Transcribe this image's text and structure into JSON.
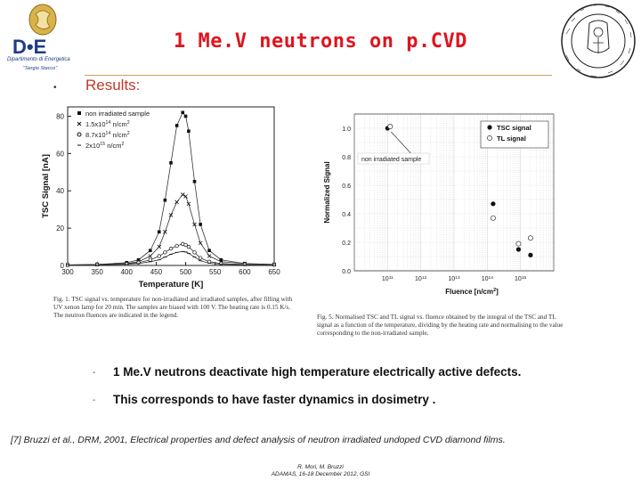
{
  "slide": {
    "title": "1 Me.V neutrons on p.CVD",
    "subtitle": "Results:",
    "bullets": [
      "1 Me.V neutrons deactivate high temperature electrically active defects.",
      "This corresponds to have faster dynamics in dosimetry ."
    ],
    "reference": "[7] Bruzzi et al., DRM, 2001, Electrical properties and defect analysis of neutron irradiated undoped CVD diamond films.",
    "authors": "R. Mori, M. Bruzzi",
    "event": "ADAMAS, 16-18 December 2012, GSI"
  },
  "logos": {
    "left_text": "D•E",
    "left_caption": "Dipartimento di Energetica",
    "left_sub": "\"Sergio Stecco\""
  },
  "figure1": {
    "caption": "Fig. 1. TSC signal vs. temperature for non-irradiated and irradiated samples, after filling with UV xenon lamp for 20 min. The samples are biased with 100 V. The heating rate is 0.15 K/s. The neutron fluences are indicated in the legend."
  },
  "figure2": {
    "caption": "Fig. 5. Normalised TSC and TL signal vs. fluence obtained by the integral of the TSC and TL signal as a function of the temperature, dividing by the heating rate and normalising to the value corresponding to the non-irradiated sample."
  },
  "chart_data": [
    {
      "type": "line",
      "xlabel": "Temperature [K]",
      "ylabel": "TSC Signal [nA]",
      "xlim": [
        300,
        650
      ],
      "ylim": [
        0,
        85
      ],
      "xticks": [
        300,
        350,
        400,
        450,
        500,
        550,
        600,
        650
      ],
      "yticks": [
        0,
        20,
        40,
        60,
        80
      ],
      "x": [
        300,
        350,
        400,
        420,
        440,
        455,
        465,
        475,
        485,
        495,
        500,
        505,
        515,
        525,
        540,
        560,
        600,
        650
      ],
      "series": [
        {
          "name": "non irradiated sample",
          "marker": "square",
          "values": [
            0.3,
            0.5,
            1.5,
            3,
            8,
            18,
            35,
            55,
            75,
            82,
            80,
            72,
            45,
            22,
            8,
            3,
            1,
            0.5
          ]
        },
        {
          "name": "1.5x10^14 n/cm^2",
          "marker": "x",
          "values": [
            0.3,
            0.5,
            1,
            2,
            5,
            10,
            18,
            27,
            34,
            38,
            37,
            33,
            22,
            12,
            5,
            2,
            1,
            0.5
          ]
        },
        {
          "name": "8.7x10^14 n/cm^2",
          "marker": "circle",
          "values": [
            0.2,
            0.4,
            0.8,
            1.5,
            3,
            5,
            7,
            9,
            10.5,
            11.5,
            11,
            10,
            7,
            4,
            2,
            1,
            0.5,
            0.3
          ]
        },
        {
          "name": "2x10^15 n/cm^2",
          "marker": "dash",
          "values": [
            0.2,
            0.3,
            0.6,
            1,
            2,
            3,
            4.5,
            6,
            7,
            7.5,
            7.2,
            6.5,
            4.5,
            2.5,
            1.2,
            0.6,
            0.3,
            0.2
          ]
        }
      ],
      "legend": "top-left",
      "legend_entries": [
        "non irradiated sample",
        "1.5x10^14 n/cm^2",
        "8.7x10^14 n/cm^2",
        "2x10^15 n/cm^2"
      ]
    },
    {
      "type": "scatter",
      "xlabel": "Fluence [n/cm^2]",
      "ylabel": "Normalized Signal",
      "log_x": true,
      "xlim": [
        10000000000.0,
        1e+16
      ],
      "ylim": [
        0,
        1.1
      ],
      "yticks": [
        0.0,
        0.2,
        0.4,
        0.6,
        0.8,
        1.0
      ],
      "xticks": [
        "10^11",
        "10^12",
        "10^13",
        "10^14",
        "10^15"
      ],
      "series": [
        {
          "name": "TSC signal",
          "marker": "filled-circle",
          "points": [
            [
              100000000000.0,
              1.0
            ],
            [
              150000000000000.0,
              0.47
            ],
            [
              870000000000000.0,
              0.15
            ],
            [
              2000000000000000.0,
              0.11
            ]
          ]
        },
        {
          "name": "TL signal",
          "marker": "open-circle",
          "points": [
            [
              100000000000.0,
              1.0
            ],
            [
              150000000000000.0,
              0.37
            ],
            [
              870000000000000.0,
              0.19
            ],
            [
              2000000000000000.0,
              0.23
            ]
          ]
        }
      ],
      "annotation": "non irradiated sample",
      "legend": "top-right",
      "grid": true
    }
  ]
}
